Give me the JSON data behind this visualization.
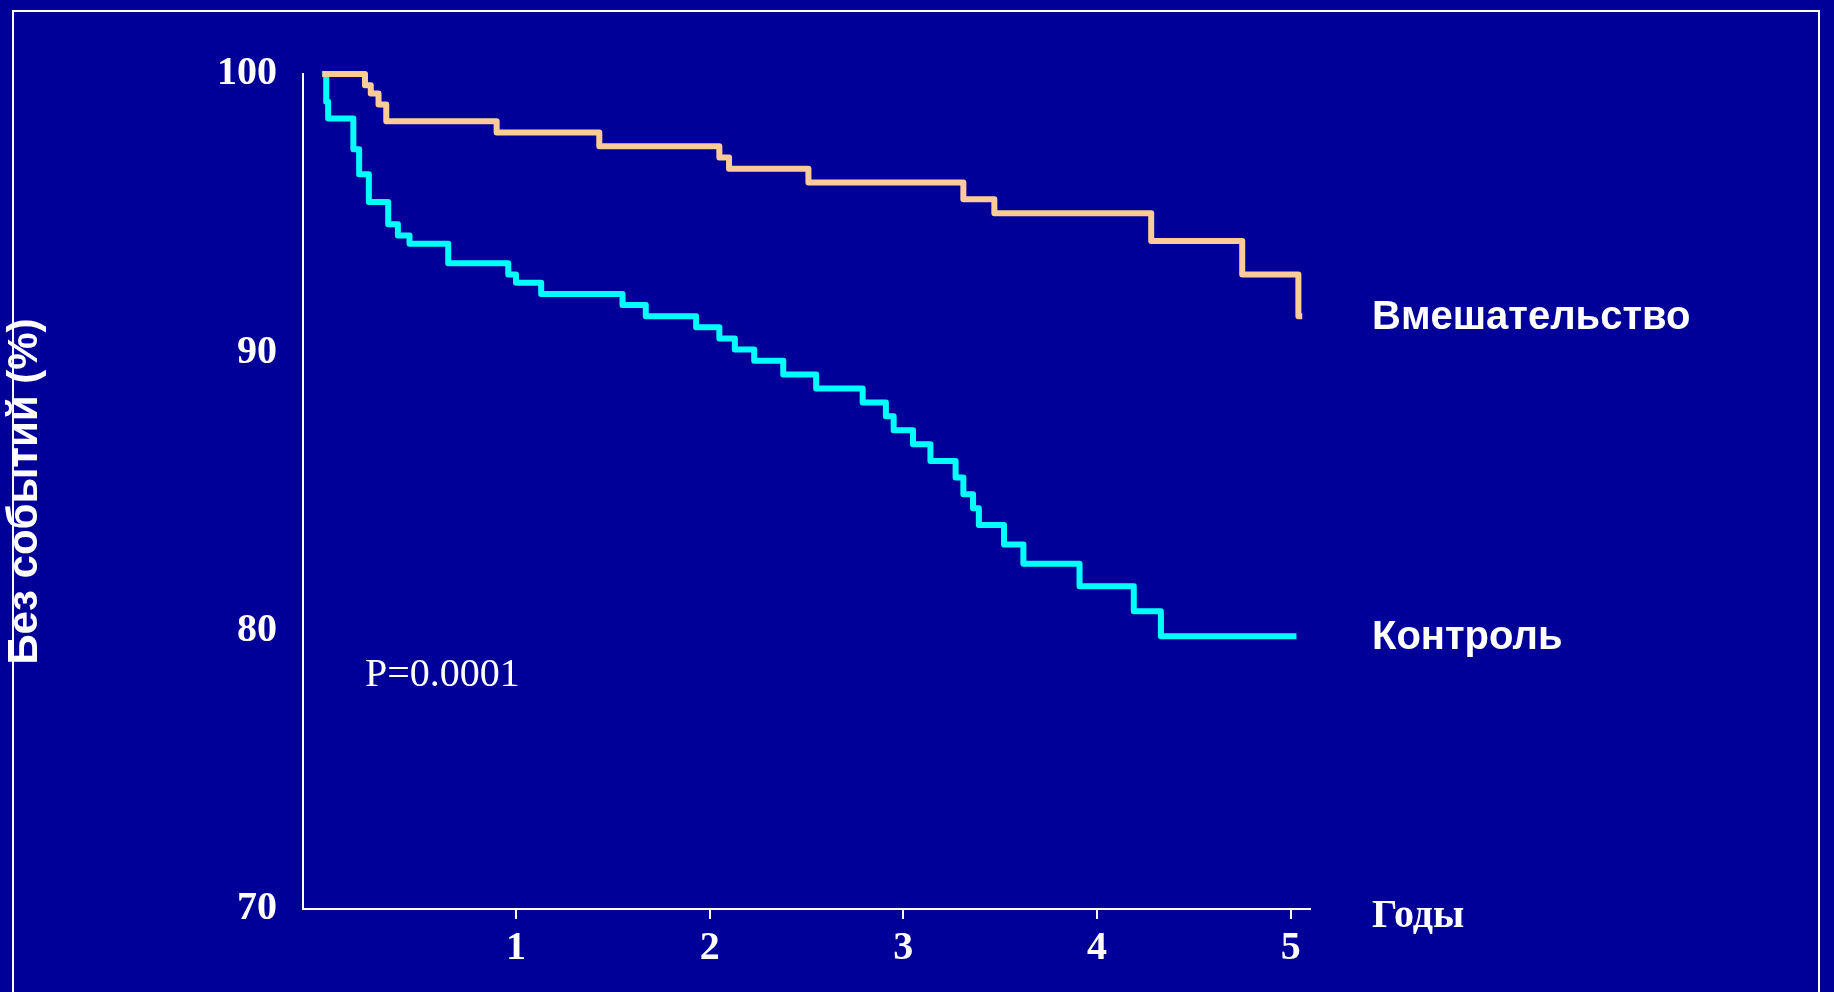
{
  "chart_data": {
    "type": "step",
    "ylabel": "Без событий (%)",
    "xlabel": "Годы",
    "xlim": [
      -0.1,
      5.1
    ],
    "ylim": [
      70,
      100
    ],
    "xticks": [
      1,
      2,
      3,
      4,
      5
    ],
    "yticks": [
      70,
      80,
      90,
      100
    ],
    "grid": false,
    "legend": false,
    "line_style": "solid",
    "marker": "none",
    "annotations": [
      "P=0.0001"
    ],
    "series": [
      {
        "name": "Вмешательство",
        "color": "#ffcc99",
        "x": [
          0,
          0.22,
          0.25,
          0.29,
          0.33,
          0.9,
          1.43,
          2.05,
          2.1,
          2.51,
          3.31,
          3.47,
          4.28,
          4.75,
          5.04,
          5.06
        ],
        "values": [
          100,
          99.6,
          99.3,
          98.9,
          98.3,
          97.9,
          97.4,
          97.0,
          96.6,
          96.1,
          95.5,
          95.0,
          94.0,
          92.8,
          91.3,
          91.3
        ]
      },
      {
        "name": "Контроль",
        "color": "#00ffff",
        "x": [
          0,
          0.02,
          0.03,
          0.16,
          0.19,
          0.24,
          0.34,
          0.39,
          0.45,
          0.65,
          0.96,
          1.0,
          1.13,
          1.55,
          1.67,
          1.93,
          2.05,
          2.13,
          2.23,
          2.38,
          2.55,
          2.79,
          2.91,
          2.95,
          3.05,
          3.14,
          3.27,
          3.31,
          3.36,
          3.39,
          3.52,
          3.62,
          3.91,
          4.19,
          4.33,
          5.03
        ],
        "values": [
          100,
          99,
          98.4,
          97.3,
          96.4,
          95.4,
          94.6,
          94.2,
          93.9,
          93.2,
          92.8,
          92.5,
          92.1,
          91.7,
          91.3,
          90.9,
          90.5,
          90.1,
          89.7,
          89.2,
          88.7,
          88.2,
          87.7,
          87.2,
          86.7,
          86.1,
          85.5,
          84.9,
          84.4,
          83.8,
          83.1,
          82.4,
          81.6,
          80.7,
          79.8,
          79.8
        ]
      }
    ]
  }
}
